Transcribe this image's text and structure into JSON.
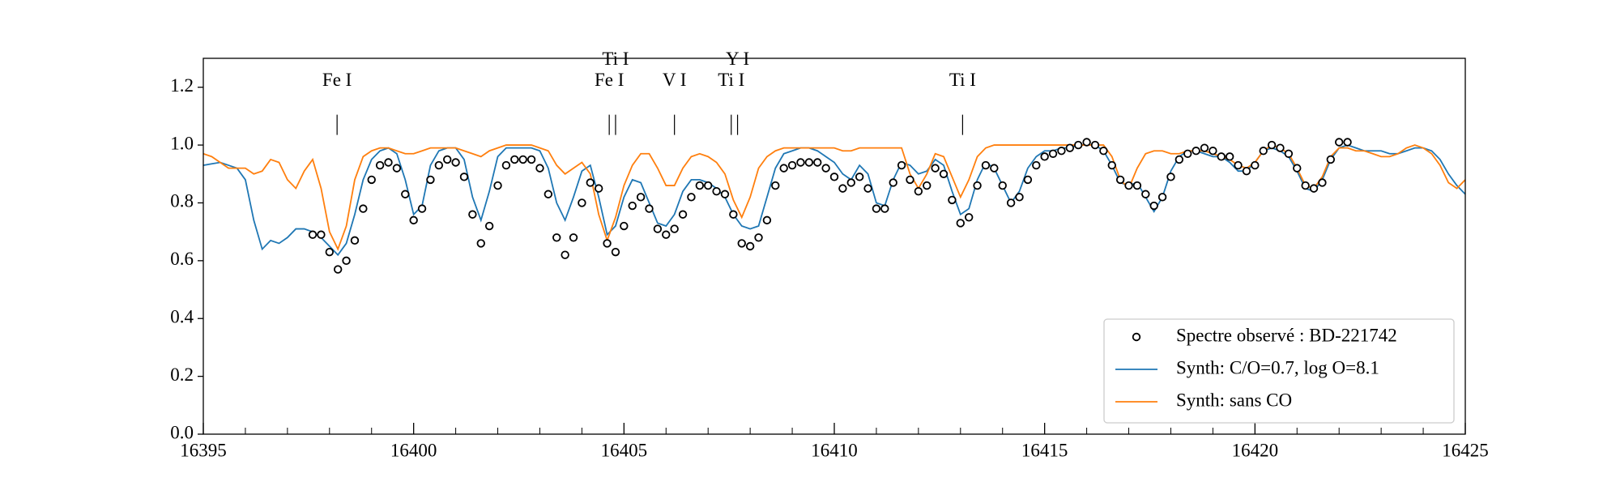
{
  "chart_data": {
    "type": "line",
    "xlim": [
      16395,
      16425
    ],
    "ylim": [
      0,
      1.3
    ],
    "xticks": [
      16395,
      16400,
      16405,
      16410,
      16415,
      16420,
      16425
    ],
    "xminorticks": [
      16396,
      16397,
      16398,
      16399,
      16401,
      16402,
      16403,
      16404,
      16406,
      16407,
      16408,
      16409,
      16411,
      16412,
      16413,
      16414,
      16416,
      16417,
      16418,
      16419,
      16421,
      16422,
      16423,
      16424
    ],
    "yticks": [
      {
        "value": 0,
        "label": "0.0"
      },
      0.2,
      0.4,
      0.6,
      0.8,
      {
        "value": 1,
        "label": "1.0"
      },
      1.2
    ],
    "legend": "lower right",
    "line_ids": [
      {
        "label": "Fe I",
        "x": 16398.18
      },
      {
        "label": "Fe I",
        "x": 16404.65
      },
      {
        "label": "Ti I",
        "x": 16404.8
      },
      {
        "label": "V I",
        "x": 16406.2
      },
      {
        "label": "Ti I",
        "x": 16407.55
      },
      {
        "label": "Y I",
        "x": 16407.7
      },
      {
        "label": "Ti I",
        "x": 16413.05
      }
    ],
    "x": [
      16395,
      16395.2,
      16395.4,
      16395.6,
      16395.8,
      16396,
      16396.2,
      16396.4,
      16396.6,
      16396.8,
      16397,
      16397.2,
      16397.4,
      16397.6,
      16397.8,
      16398,
      16398.2,
      16398.4,
      16398.6,
      16398.8,
      16399,
      16399.2,
      16399.4,
      16399.6,
      16399.8,
      16400,
      16400.2,
      16400.4,
      16400.6,
      16400.8,
      16401,
      16401.2,
      16401.4,
      16401.6,
      16401.8,
      16402,
      16402.2,
      16402.4,
      16402.6,
      16402.8,
      16403,
      16403.2,
      16403.4,
      16403.6,
      16403.8,
      16404,
      16404.2,
      16404.4,
      16404.6,
      16404.8,
      16405,
      16405.2,
      16405.4,
      16405.6,
      16405.8,
      16406,
      16406.2,
      16406.4,
      16406.6,
      16406.8,
      16407,
      16407.2,
      16407.4,
      16407.6,
      16407.8,
      16408,
      16408.2,
      16408.4,
      16408.6,
      16408.8,
      16409,
      16409.2,
      16409.4,
      16409.6,
      16409.8,
      16410,
      16410.2,
      16410.4,
      16410.6,
      16410.8,
      16411,
      16411.2,
      16411.4,
      16411.6,
      16411.8,
      16412,
      16412.2,
      16412.4,
      16412.6,
      16412.8,
      16413,
      16413.2,
      16413.4,
      16413.6,
      16413.8,
      16414,
      16414.2,
      16414.4,
      16414.6,
      16414.8,
      16415,
      16415.2,
      16415.4,
      16415.6,
      16415.8,
      16416,
      16416.2,
      16416.4,
      16416.6,
      16416.8,
      16417,
      16417.2,
      16417.4,
      16417.6,
      16417.8,
      16418,
      16418.2,
      16418.4,
      16418.6,
      16418.8,
      16419,
      16419.2,
      16419.4,
      16419.6,
      16419.8,
      16420,
      16420.2,
      16420.4,
      16420.6,
      16420.8,
      16421,
      16421.2,
      16421.4,
      16421.6,
      16421.8,
      16422,
      16422.2,
      16422.4,
      16422.6,
      16422.8,
      16423,
      16423.2,
      16423.4,
      16423.6,
      16423.8,
      16424,
      16424.2,
      16424.4,
      16424.6,
      16424.8,
      16425
    ],
    "series": [
      {
        "name": "Spectre observé : BD-221742",
        "type": "scatter",
        "color": "#000000",
        "x": [
          16397.6,
          16397.8,
          16398,
          16398.2,
          16398.4,
          16398.6,
          16398.8,
          16399,
          16399.2,
          16399.4,
          16399.6,
          16399.8,
          16400,
          16400.2,
          16400.4,
          16400.6,
          16400.8,
          16401,
          16401.2,
          16401.4,
          16401.6,
          16401.8,
          16402,
          16402.2,
          16402.4,
          16402.6,
          16402.8,
          16403,
          16403.2,
          16403.4,
          16403.6,
          16403.8,
          16404,
          16404.2,
          16404.4,
          16404.6,
          16404.8,
          16405,
          16405.2,
          16405.4,
          16405.6,
          16405.8,
          16406,
          16406.2,
          16406.4,
          16406.6,
          16406.8,
          16407,
          16407.2,
          16407.4,
          16407.6,
          16407.8,
          16408,
          16408.2,
          16408.4,
          16408.6,
          16408.8,
          16409,
          16409.2,
          16409.4,
          16409.6,
          16409.8,
          16410,
          16410.2,
          16410.4,
          16410.6,
          16410.8,
          16411,
          16411.2,
          16411.4,
          16411.6,
          16411.8,
          16412,
          16412.2,
          16412.4,
          16412.6,
          16412.8,
          16413,
          16413.2,
          16413.4,
          16413.6,
          16413.8,
          16414,
          16414.2,
          16414.4,
          16414.6,
          16414.8,
          16415,
          16415.2,
          16415.4,
          16415.6,
          16415.8,
          16416,
          16416.2,
          16416.4,
          16416.6,
          16416.8,
          16417,
          16417.2,
          16417.4,
          16417.6,
          16417.8,
          16418,
          16418.2,
          16418.4,
          16418.6,
          16418.8,
          16419,
          16419.2,
          16419.4,
          16419.6,
          16419.8,
          16420,
          16420.2,
          16420.4,
          16420.6,
          16420.8,
          16421,
          16421.2,
          16421.4,
          16421.6,
          16421.8,
          16422,
          16422.2
        ],
        "values": [
          0.69,
          0.69,
          0.63,
          0.57,
          0.6,
          0.67,
          0.78,
          0.88,
          0.93,
          0.94,
          0.92,
          0.83,
          0.74,
          0.78,
          0.88,
          0.93,
          0.95,
          0.94,
          0.89,
          0.76,
          0.66,
          0.72,
          0.86,
          0.93,
          0.95,
          0.95,
          0.95,
          0.92,
          0.83,
          0.68,
          0.62,
          0.68,
          0.8,
          0.87,
          0.85,
          0.66,
          0.63,
          0.72,
          0.79,
          0.82,
          0.78,
          0.71,
          0.69,
          0.71,
          0.76,
          0.82,
          0.86,
          0.86,
          0.84,
          0.83,
          0.76,
          0.66,
          0.65,
          0.68,
          0.74,
          0.86,
          0.92,
          0.93,
          0.94,
          0.94,
          0.94,
          0.92,
          0.89,
          0.85,
          0.87,
          0.89,
          0.85,
          0.78,
          0.78,
          0.87,
          0.93,
          0.88,
          0.84,
          0.86,
          0.92,
          0.9,
          0.81,
          0.73,
          0.75,
          0.86,
          0.93,
          0.92,
          0.86,
          0.8,
          0.82,
          0.88,
          0.93,
          0.96,
          0.97,
          0.98,
          0.99,
          1.0,
          1.01,
          1.0,
          0.98,
          0.93,
          0.88,
          0.86,
          0.86,
          0.83,
          0.79,
          0.82,
          0.89,
          0.95,
          0.97,
          0.98,
          0.99,
          0.98,
          0.96,
          0.96,
          0.93,
          0.91,
          0.93,
          0.98,
          1.0,
          0.99,
          0.97,
          0.92,
          0.86,
          0.85,
          0.87,
          0.95,
          1.01,
          1.01
        ]
      },
      {
        "name": "Synth: C/O=0.7, log O=8.1",
        "type": "line",
        "color": "#1f77b4",
        "values": [
          0.93,
          0.935,
          0.94,
          0.93,
          0.92,
          0.88,
          0.74,
          0.64,
          0.67,
          0.66,
          0.68,
          0.71,
          0.71,
          0.7,
          0.68,
          0.65,
          0.62,
          0.66,
          0.76,
          0.88,
          0.95,
          0.98,
          0.99,
          0.97,
          0.88,
          0.76,
          0.79,
          0.93,
          0.98,
          0.99,
          0.99,
          0.95,
          0.82,
          0.74,
          0.84,
          0.96,
          0.99,
          0.99,
          0.99,
          0.99,
          0.98,
          0.92,
          0.8,
          0.74,
          0.82,
          0.91,
          0.93,
          0.82,
          0.69,
          0.72,
          0.82,
          0.88,
          0.87,
          0.8,
          0.73,
          0.72,
          0.76,
          0.84,
          0.88,
          0.88,
          0.87,
          0.85,
          0.82,
          0.76,
          0.72,
          0.71,
          0.72,
          0.82,
          0.92,
          0.97,
          0.98,
          0.99,
          0.99,
          0.98,
          0.96,
          0.94,
          0.9,
          0.88,
          0.93,
          0.9,
          0.8,
          0.79,
          0.88,
          0.94,
          0.93,
          0.9,
          0.91,
          0.95,
          0.93,
          0.84,
          0.76,
          0.78,
          0.88,
          0.94,
          0.92,
          0.86,
          0.8,
          0.84,
          0.92,
          0.96,
          0.98,
          0.98,
          0.99,
          0.99,
          1.0,
          1.0,
          1.0,
          0.98,
          0.93,
          0.87,
          0.86,
          0.87,
          0.82,
          0.77,
          0.82,
          0.91,
          0.96,
          0.98,
          0.98,
          0.97,
          0.96,
          0.96,
          0.94,
          0.91,
          0.91,
          0.94,
          0.98,
          0.99,
          0.98,
          0.96,
          0.91,
          0.85,
          0.84,
          0.88,
          0.95,
          0.99,
          1.0,
          0.99,
          0.98,
          0.98,
          0.98,
          0.97,
          0.97,
          0.98,
          0.99,
          0.99,
          0.98,
          0.95,
          0.9,
          0.86,
          0.83
        ]
      },
      {
        "name": "Synth: sans CO",
        "type": "line",
        "color": "#ff7f0e",
        "values": [
          0.97,
          0.96,
          0.94,
          0.92,
          0.92,
          0.92,
          0.9,
          0.91,
          0.95,
          0.94,
          0.88,
          0.85,
          0.91,
          0.95,
          0.85,
          0.7,
          0.64,
          0.72,
          0.88,
          0.96,
          0.98,
          0.99,
          0.99,
          0.98,
          0.97,
          0.97,
          0.98,
          0.99,
          0.99,
          0.99,
          0.99,
          0.98,
          0.97,
          0.96,
          0.98,
          0.99,
          1.0,
          1.0,
          1.0,
          1.0,
          0.99,
          0.98,
          0.93,
          0.9,
          0.92,
          0.94,
          0.9,
          0.76,
          0.67,
          0.75,
          0.86,
          0.93,
          0.97,
          0.97,
          0.92,
          0.86,
          0.86,
          0.92,
          0.96,
          0.97,
          0.96,
          0.94,
          0.9,
          0.81,
          0.75,
          0.82,
          0.92,
          0.96,
          0.98,
          0.99,
          0.99,
          0.99,
          0.99,
          0.99,
          0.99,
          0.99,
          0.98,
          0.98,
          0.99,
          0.99,
          0.99,
          0.99,
          0.99,
          0.99,
          0.9,
          0.85,
          0.9,
          0.97,
          0.96,
          0.89,
          0.82,
          0.88,
          0.96,
          0.99,
          1.0,
          1.0,
          1.0,
          1.0,
          1.0,
          1.0,
          1.0,
          1.0,
          1.0,
          1.0,
          1.0,
          1.0,
          1.0,
          1.0,
          0.96,
          0.88,
          0.85,
          0.92,
          0.97,
          0.98,
          0.98,
          0.97,
          0.97,
          0.98,
          0.98,
          0.98,
          0.97,
          0.96,
          0.95,
          0.93,
          0.92,
          0.94,
          0.98,
          1.0,
          0.99,
          0.97,
          0.92,
          0.86,
          0.85,
          0.89,
          0.96,
          0.99,
          0.99,
          0.98,
          0.98,
          0.97,
          0.96,
          0.96,
          0.97,
          0.99,
          1.0,
          0.99,
          0.97,
          0.93,
          0.87,
          0.85,
          0.88
        ]
      }
    ]
  }
}
